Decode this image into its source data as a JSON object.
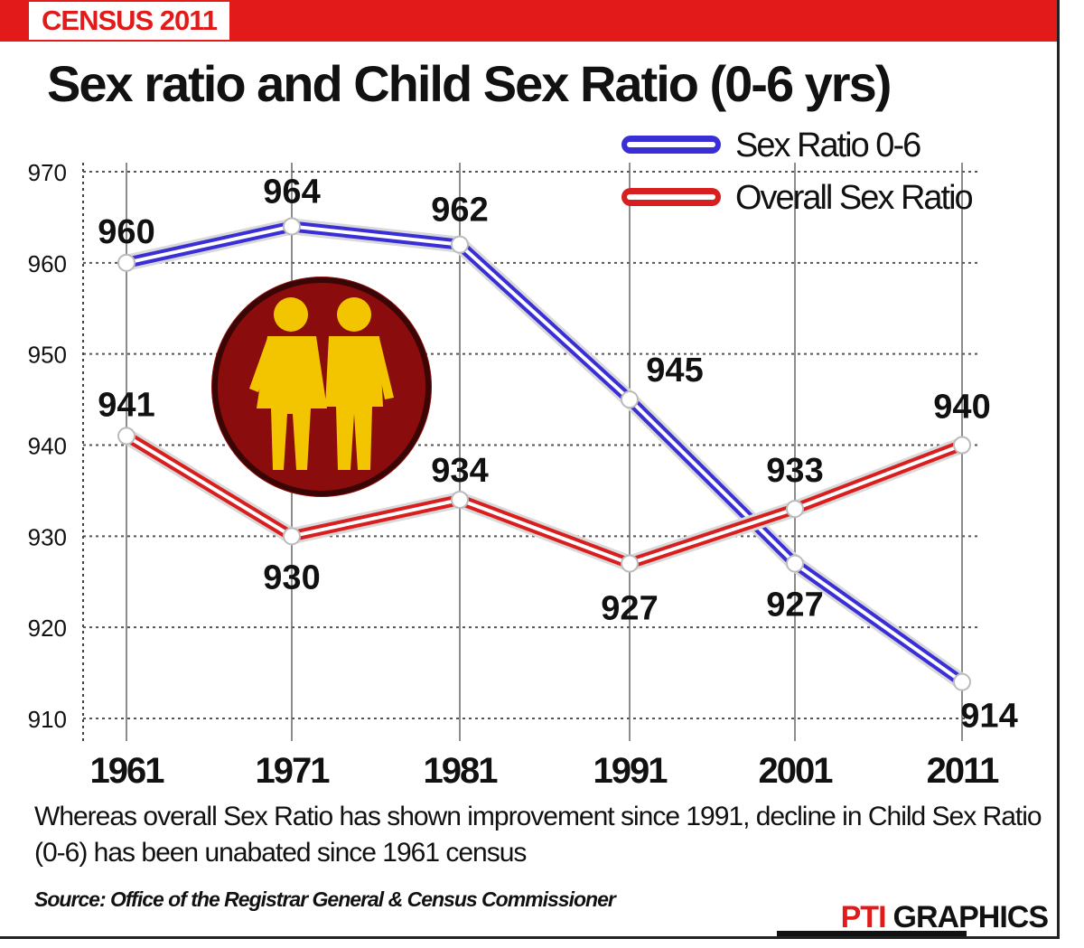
{
  "banner": {
    "label": "CENSUS 2011"
  },
  "chart_data": {
    "type": "line",
    "title": "Sex ratio and Child Sex Ratio (0-6 yrs)",
    "x": [
      "1961",
      "1971",
      "1981",
      "1991",
      "2001",
      "2011"
    ],
    "ylim": [
      910,
      970
    ],
    "yticks": [
      910,
      920,
      930,
      940,
      950,
      960,
      970
    ],
    "grid": true,
    "legend_position": "top-right",
    "series": [
      {
        "name": "Sex Ratio 0-6",
        "color": "#3a2fd6",
        "values": [
          960,
          964,
          962,
          945,
          927,
          914
        ]
      },
      {
        "name": "Overall Sex Ratio",
        "color": "#d81e1e",
        "values": [
          941,
          930,
          934,
          927,
          933,
          940
        ]
      }
    ]
  },
  "caption": "Whereas overall Sex Ratio has shown improvement since 1991, decline in Child Sex Ratio (0-6) has been unabated since 1961 census",
  "source": "Source: Office of the Registrar General & Census Commissioner",
  "credit": {
    "brand": "PTI",
    "label": "GRAPHICS"
  },
  "icon": {
    "name": "couple-icon",
    "bg_color": "#8b0c0c",
    "figure_color": "#f2c500"
  }
}
